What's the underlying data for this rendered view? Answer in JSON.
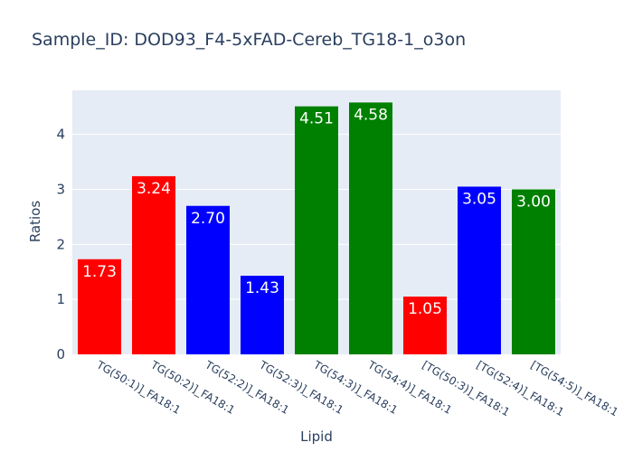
{
  "chart_data": {
    "type": "bar",
    "title": "Sample_ID: DOD93_F4-5xFAD-Cereb_TG18-1_o3on",
    "xlabel": "Lipid",
    "ylabel": "Ratios",
    "categories": [
      "TG(50:1)]_FA18:1",
      "TG(50:2)]_FA18:1",
      "TG(52:2)]_FA18:1",
      "TG(52:3)]_FA18:1",
      "TG(54:3)]_FA18:1",
      "TG(54:4)]_FA18:1",
      "[TG(50:3)]_FA18:1",
      "[TG(52:4)]_FA18:1",
      "[TG(54:5)]_FA18:1"
    ],
    "values": [
      1.73,
      3.24,
      2.7,
      1.43,
      4.51,
      4.58,
      1.05,
      3.05,
      3.0
    ],
    "value_labels": [
      "1.73",
      "3.24",
      "2.70",
      "1.43",
      "4.51",
      "4.58",
      "1.05",
      "3.05",
      "3.00"
    ],
    "bar_colors": [
      "#ff0000",
      "#ff0000",
      "#0000ff",
      "#0000ff",
      "#008000",
      "#008000",
      "#ff0000",
      "#0000ff",
      "#008000"
    ],
    "yticks": [
      0,
      1,
      2,
      3,
      4
    ],
    "ylim": [
      0,
      4.8
    ],
    "grid": true,
    "legend": "none",
    "plot_background": "#e5ecf6",
    "text_color": "#2a3f5f"
  }
}
